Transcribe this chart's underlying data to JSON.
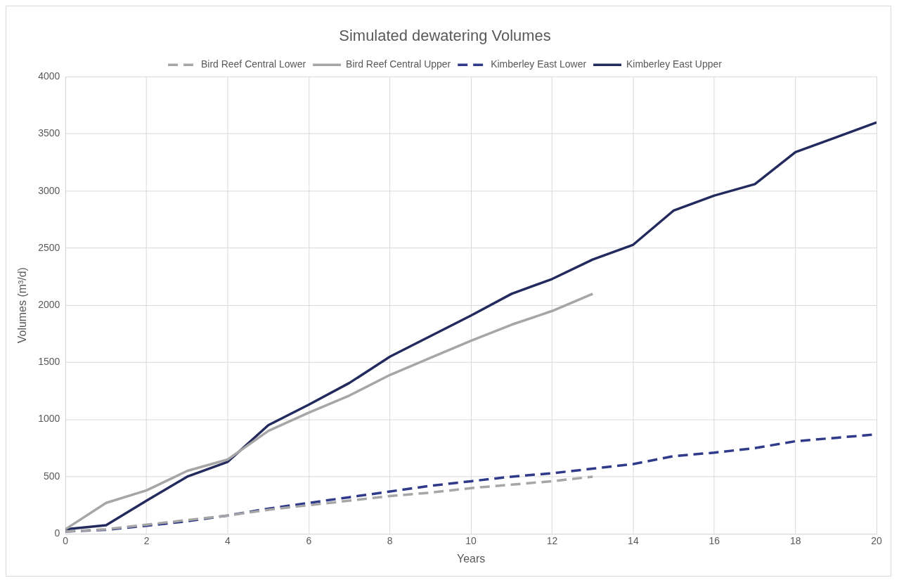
{
  "chart_data": {
    "type": "line",
    "title": "Simulated dewatering Volumes",
    "xlabel": "Years",
    "ylabel": "Volumes (m³/d)",
    "xlim": [
      0,
      20
    ],
    "xticks": [
      0,
      2,
      4,
      6,
      8,
      10,
      12,
      14,
      16,
      18,
      20
    ],
    "ylim": [
      0,
      4000
    ],
    "yticks": [
      0,
      500,
      1000,
      1500,
      2000,
      2500,
      3000,
      3500,
      4000
    ],
    "grid": true,
    "legend": "top",
    "marker": "none",
    "series": [
      {
        "name": "Bird Reef Central Lower",
        "color": "#a6a6a6",
        "line_style": "dashed",
        "x": [
          0,
          1,
          2,
          3,
          4,
          5,
          6,
          7,
          8,
          9,
          10,
          11,
          12,
          13
        ],
        "values": [
          20,
          40,
          80,
          120,
          160,
          210,
          250,
          290,
          330,
          360,
          400,
          430,
          460,
          500
        ]
      },
      {
        "name": "Bird Reef Central Upper",
        "color": "#a6a6a6",
        "line_style": "solid",
        "x": [
          0,
          1,
          2,
          3,
          4,
          5,
          6,
          7,
          8,
          9,
          10,
          11,
          12,
          13
        ],
        "values": [
          40,
          270,
          380,
          550,
          650,
          900,
          1060,
          1210,
          1390,
          1540,
          1690,
          1830,
          1950,
          2100
        ]
      },
      {
        "name": "Kimberley East Lower",
        "color": "#2f3a8a",
        "line_style": "dashed",
        "x": [
          0,
          1,
          2,
          3,
          4,
          5,
          6,
          7,
          8,
          9,
          10,
          11,
          12,
          13,
          14,
          15,
          16,
          17,
          18,
          19,
          20
        ],
        "values": [
          20,
          35,
          70,
          110,
          160,
          220,
          270,
          320,
          370,
          420,
          460,
          500,
          530,
          570,
          610,
          680,
          710,
          750,
          810,
          840,
          870
        ]
      },
      {
        "name": "Kimberley East Upper",
        "color": "#232a5e",
        "line_style": "solid",
        "x": [
          0,
          1,
          2,
          3,
          4,
          5,
          6,
          7,
          8,
          9,
          10,
          11,
          12,
          13,
          14,
          15,
          16,
          17,
          18,
          19,
          20
        ],
        "values": [
          40,
          75,
          290,
          500,
          630,
          950,
          1130,
          1320,
          1550,
          1730,
          1910,
          2100,
          2230,
          2400,
          2530,
          2830,
          2960,
          3060,
          3340,
          3470,
          3600
        ]
      }
    ]
  }
}
